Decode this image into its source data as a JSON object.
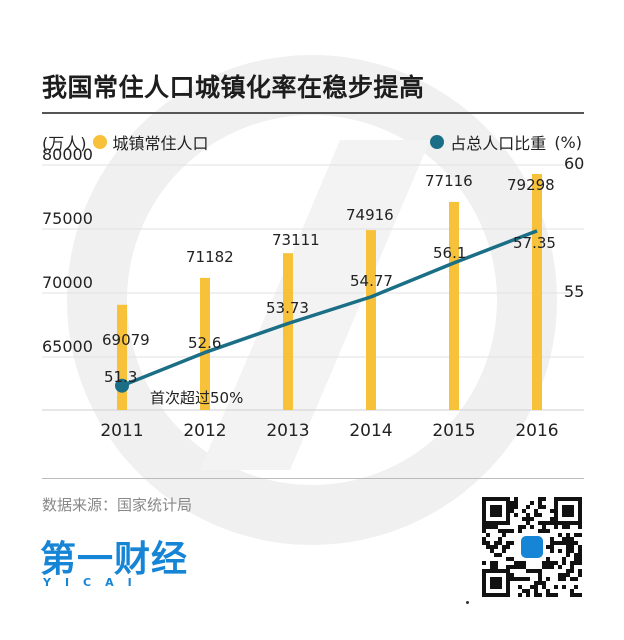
{
  "title": "我国常住人口城镇化率在稳步提高",
  "legend": {
    "left_unit": "(万人)",
    "left_series": "城镇常住人口",
    "right_series": "占总人口比重",
    "right_unit": "(%)"
  },
  "source": "数据来源：国家统计局",
  "logo": {
    "main": "第一财经",
    "sub": "YICAI"
  },
  "colors": {
    "bar": "#f7c13a",
    "line": "#1a6e86",
    "watermark": "#efefef",
    "brand": "#1685d6"
  },
  "chart_data": {
    "type": "bar+line",
    "categories": [
      "2011",
      "2012",
      "2013",
      "2014",
      "2015",
      "2016"
    ],
    "series": [
      {
        "name": "城镇常住人口",
        "type": "bar",
        "axis": "left",
        "values": [
          69079,
          71182,
          73111,
          74916,
          77116,
          79298
        ],
        "labels": [
          "69079",
          "71182",
          "73111",
          "74916",
          "77116",
          "79298"
        ]
      },
      {
        "name": "占总人口比重",
        "type": "line",
        "axis": "right",
        "values": [
          51.3,
          52.6,
          53.73,
          54.77,
          56.1,
          57.35
        ],
        "labels": [
          "51.3",
          "52.6",
          "53.73",
          "54.77",
          "56.1",
          "57.35"
        ]
      }
    ],
    "y_left": {
      "ticks": [
        "80000",
        "75000",
        "70000",
        "65000"
      ],
      "tick_values": [
        80000,
        75000,
        70000,
        65000
      ]
    },
    "y_right": {
      "ticks": [
        "60",
        "55"
      ],
      "tick_values": [
        60,
        55
      ]
    },
    "annotation": "首次超过50%",
    "grid": true
  }
}
